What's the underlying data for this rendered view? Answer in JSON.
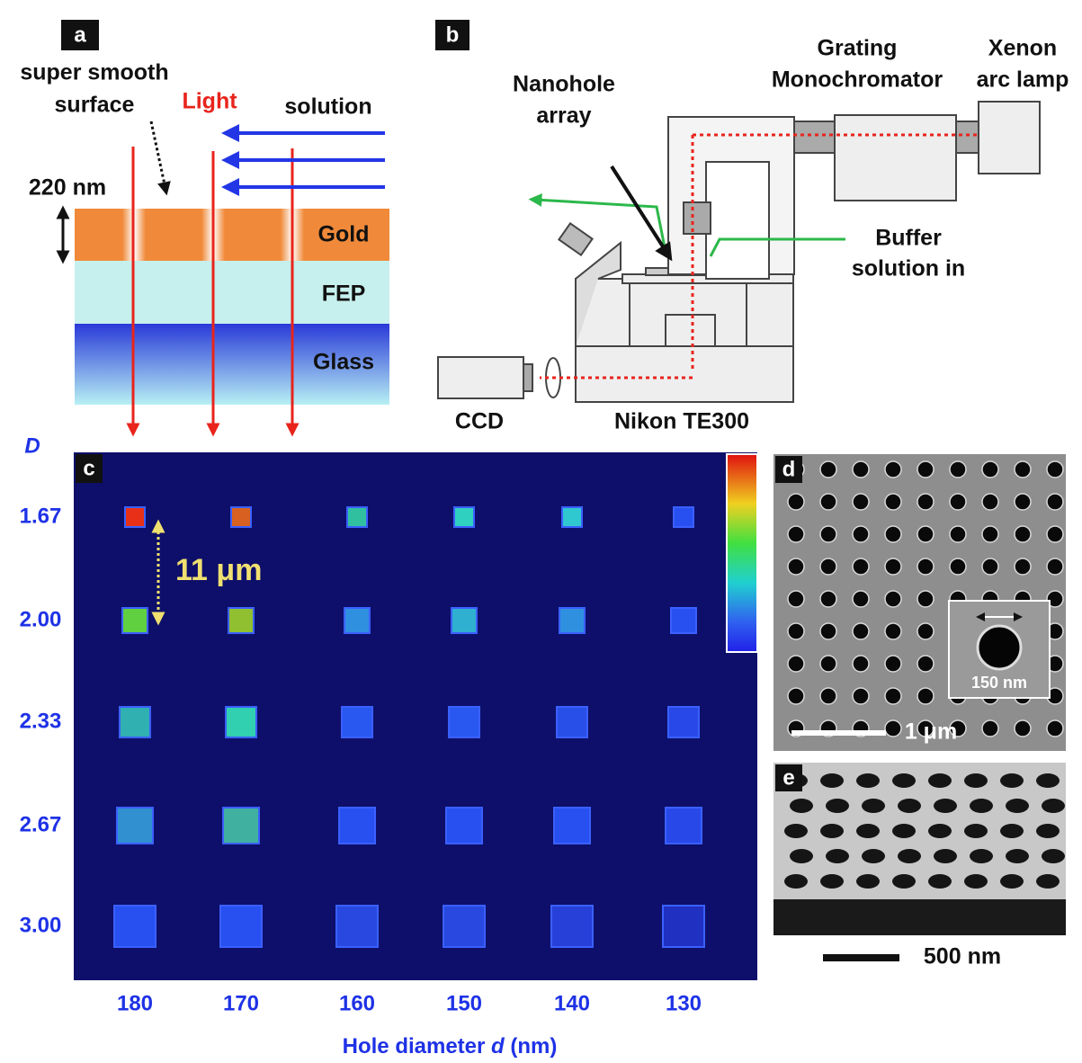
{
  "panel_a": {
    "label": "a",
    "surface_note": [
      "super smooth",
      "surface"
    ],
    "light": "Light",
    "solution": "solution",
    "thickness": "220 nm",
    "layers": [
      "Gold",
      "FEP",
      "Glass"
    ]
  },
  "panel_b": {
    "label": "b",
    "monochromator": [
      "Grating",
      "Monochromator"
    ],
    "lamp": [
      "Xenon",
      "arc lamp"
    ],
    "sample": [
      "Nanohole",
      "array"
    ],
    "buffer": [
      "Buffer",
      "solution in"
    ],
    "camera": "CCD",
    "microscope": "Nikon TE300"
  },
  "panel_c": {
    "label": "c",
    "y_title": "D",
    "y_labels": [
      "1.67",
      "2.00",
      "2.33",
      "2.67",
      "3.00"
    ],
    "x_labels": [
      "180",
      "170",
      "160",
      "150",
      "140",
      "130"
    ],
    "x_title": {
      "text": "Hole diameter",
      "symbol": "d",
      "unit": "(nm)"
    },
    "spacing": "11 μm"
  },
  "panel_d": {
    "label": "d",
    "inset_scale": "150 nm",
    "scale": "1 μm"
  },
  "panel_e": {
    "label": "e",
    "scale": "500 nm"
  }
}
